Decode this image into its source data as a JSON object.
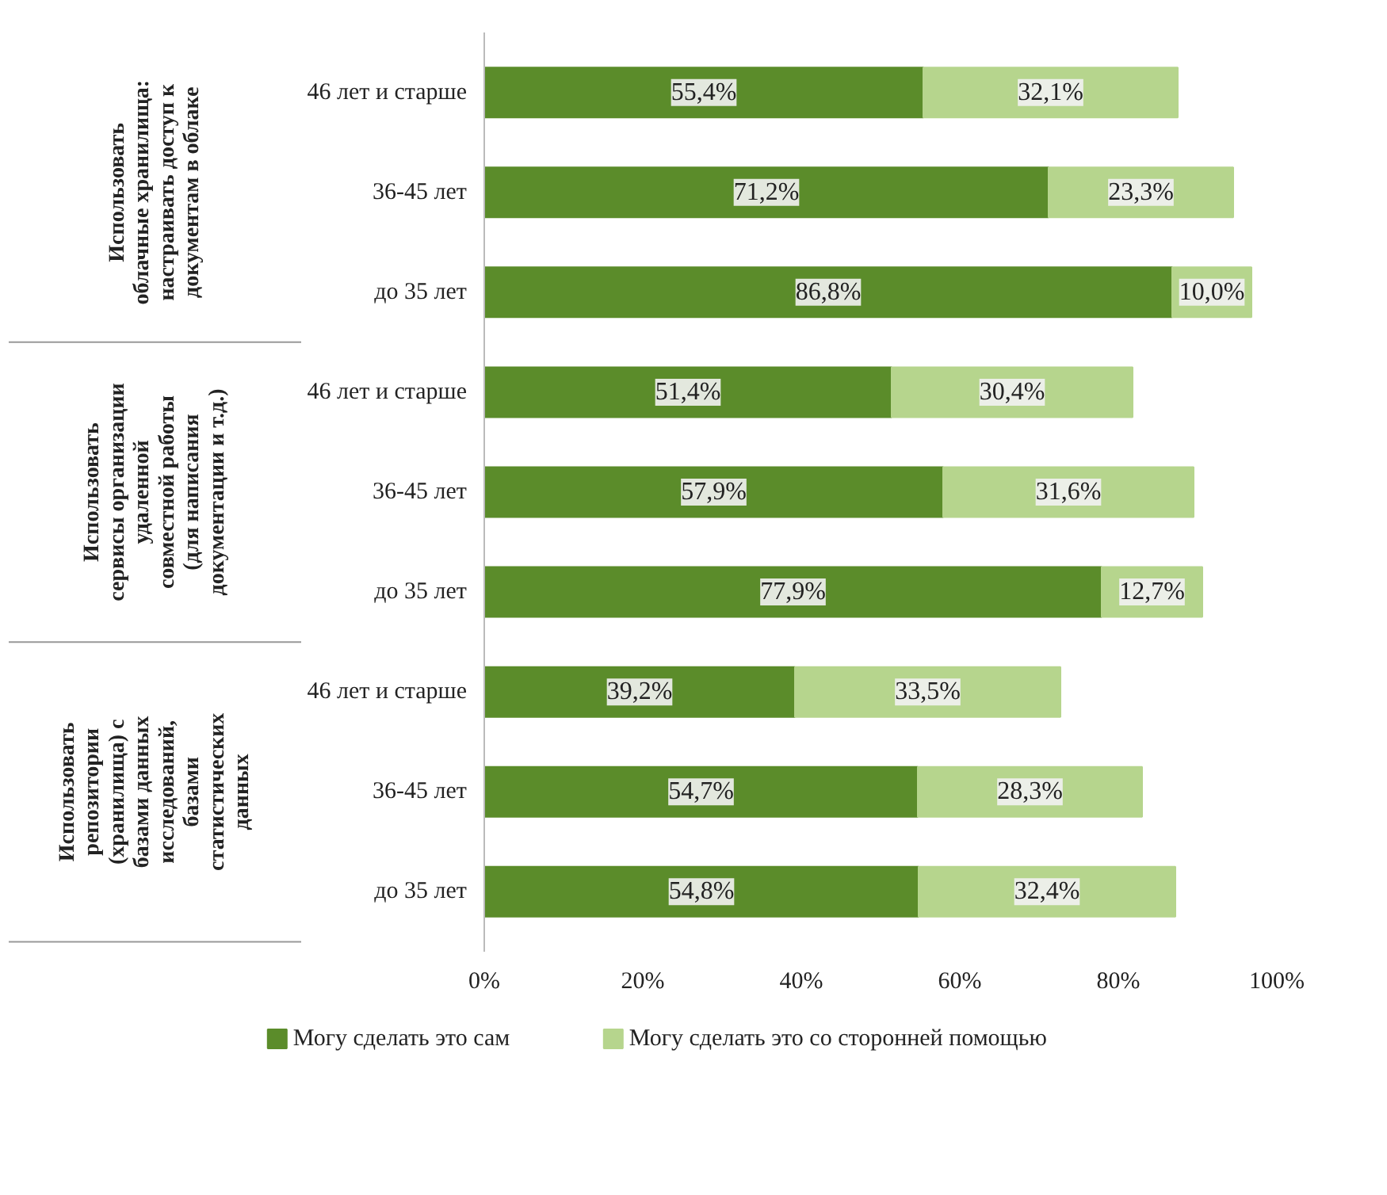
{
  "chart_data": {
    "type": "bar",
    "orientation": "horizontal",
    "stacked": true,
    "categories": [
      "46 лет и старше",
      "36-45 лет",
      "до 35 лет",
      "46 лет и старше",
      "36-45 лет",
      "до 35 лет",
      "46 лет и старше",
      "36-45 лет",
      "до 35 лет"
    ],
    "series": [
      {
        "name": "Могу сделать это сам",
        "color": "#5b8c2a",
        "values": [
          55.4,
          71.2,
          86.8,
          51.4,
          57.9,
          77.9,
          39.2,
          54.7,
          54.8
        ],
        "value_labels": [
          "55,4%",
          "71,2%",
          "86,8%",
          "51,4%",
          "57,9%",
          "77,9%",
          "39,2%",
          "54,7%",
          "54,8%"
        ]
      },
      {
        "name": "Могу сделать это со сторонней помощью",
        "color": "#b6d58d",
        "values": [
          32.1,
          23.3,
          10.0,
          30.4,
          31.6,
          12.7,
          33.5,
          28.3,
          32.4
        ],
        "value_labels": [
          "32,1%",
          "23,3%",
          "10,0%",
          "30,4%",
          "31,6%",
          "12,7%",
          "33,5%",
          "28,3%",
          "32,4%"
        ]
      }
    ],
    "annotations": [
      "Использовать\nоблачные хранилища:\nнастраивать доступ к\nдокументам в облаке",
      "Использовать\nсервисы организации\nудаленной\nсовместной работы\n(для написания\nдокументации и т.д.)",
      "Использовать\nрепозитории\n(хранилища) с\nбазами данных\nисследований,\nбазами\nстатистических\nданных"
    ],
    "xlim": [
      0,
      100
    ],
    "xticks": [
      {
        "value": 0,
        "label": "0%"
      },
      {
        "value": 20,
        "label": "20%"
      },
      {
        "value": 40,
        "label": "40%"
      },
      {
        "value": 60,
        "label": "60%"
      },
      {
        "value": 80,
        "label": "80%"
      },
      {
        "value": 100,
        "label": "100%"
      }
    ],
    "grid": false,
    "legend": "bottom"
  }
}
